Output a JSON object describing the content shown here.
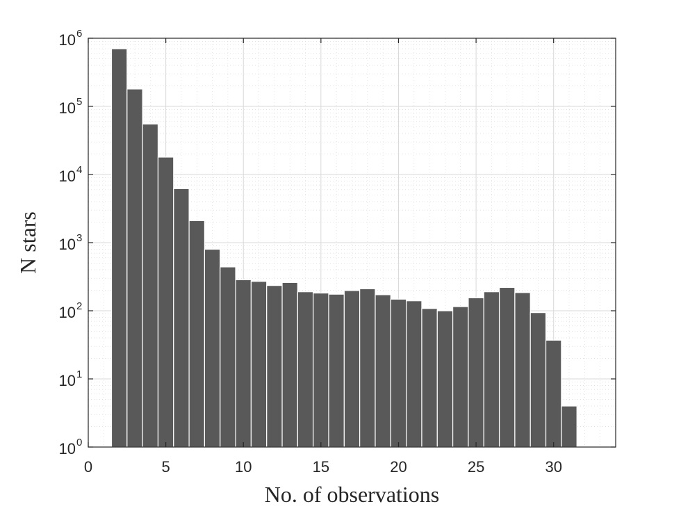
{
  "chart_data": {
    "type": "bar",
    "title": "",
    "xlabel": "No. of observations",
    "ylabel": "N stars",
    "x": [
      2,
      3,
      4,
      5,
      6,
      7,
      8,
      9,
      10,
      11,
      12,
      13,
      14,
      15,
      16,
      17,
      18,
      19,
      20,
      21,
      22,
      23,
      24,
      25,
      26,
      27,
      28,
      29,
      30,
      31
    ],
    "values": [
      700000,
      180000,
      55000,
      18000,
      6200,
      2100,
      800,
      440,
      285,
      270,
      235,
      260,
      190,
      182,
      175,
      198,
      210,
      172,
      148,
      140,
      108,
      100,
      115,
      155,
      190,
      220,
      185,
      94,
      37,
      4
    ],
    "xlim": [
      0,
      34
    ],
    "ylim": [
      1,
      1000000
    ],
    "yscale": "log",
    "xticks": [
      0,
      5,
      10,
      15,
      20,
      25,
      30
    ],
    "xtick_labels": [
      "0",
      "5",
      "10",
      "15",
      "20",
      "25",
      "30"
    ],
    "yticks": [
      1,
      10,
      100,
      1000,
      10000,
      100000,
      1000000
    ],
    "ytick_labels": [
      {
        "base": "10",
        "exp": "0"
      },
      {
        "base": "10",
        "exp": "1"
      },
      {
        "base": "10",
        "exp": "2"
      },
      {
        "base": "10",
        "exp": "3"
      },
      {
        "base": "10",
        "exp": "4"
      },
      {
        "base": "10",
        "exp": "5"
      },
      {
        "base": "10",
        "exp": "6"
      }
    ],
    "grid": true,
    "minor_grid": true,
    "legend": "none",
    "colors": {
      "bar": "#595959",
      "bar_edge": "#ffffff",
      "grid": "#d9d9d9",
      "axis": "#262626"
    }
  }
}
